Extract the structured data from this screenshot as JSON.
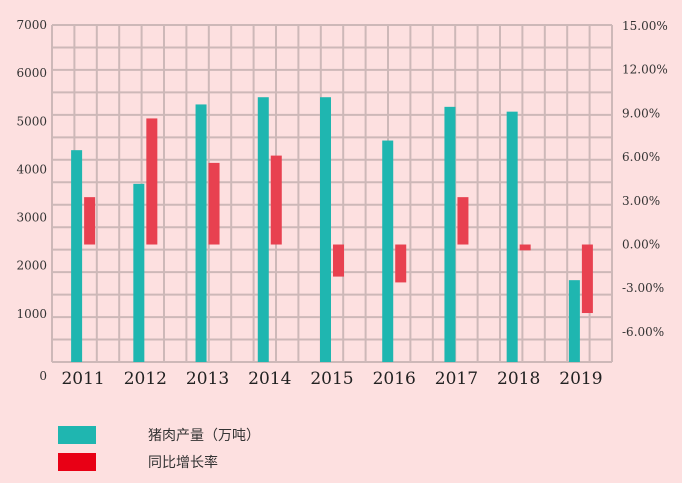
{
  "chart_data": {
    "type": "bar",
    "categories": [
      "2011",
      "2012",
      "2013",
      "2014",
      "2015",
      "2016",
      "2017",
      "2018",
      "2019"
    ],
    "series": [
      {
        "name": "猪肉产量（万吨）",
        "axis": "left",
        "color": "#1fb6b0",
        "values": [
          4400,
          3700,
          5350,
          5500,
          5500,
          4600,
          5300,
          5200,
          1700
        ]
      },
      {
        "name": "同比增长率",
        "axis": "right",
        "color": "#e84150",
        "values": [
          0.0325,
          0.0865,
          0.056,
          0.061,
          -0.022,
          -0.026,
          0.0325,
          -0.004,
          -0.047
        ]
      }
    ],
    "left_axis": {
      "ticks": [
        "0",
        "1000",
        "2000",
        "3000",
        "4000",
        "5000",
        "6000",
        "7000"
      ],
      "ylim": [
        0,
        7000
      ]
    },
    "right_axis": {
      "ticks": [
        "-6.00%",
        "-3.00%",
        "0.00%",
        "3.00%",
        "6.00%",
        "9.00%",
        "12.00%",
        "15.00%"
      ],
      "ylim": [
        -0.0806,
        0.1506
      ]
    },
    "grid": true,
    "legend_position": "bottom-left"
  },
  "legend": {
    "production_label": "猪肉产量（万吨）",
    "growth_label": "同比增长率",
    "production_color": "#1fb6b0",
    "growth_color": "#e80015"
  }
}
